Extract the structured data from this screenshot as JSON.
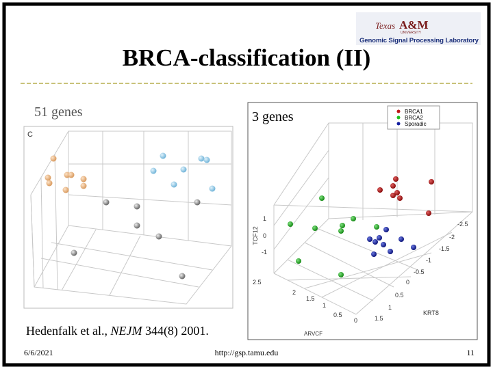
{
  "header": {
    "title": "BRCA-classification (II)",
    "logo": {
      "texas": "Texas",
      "am": "A&M",
      "university": "UNIVERSITY",
      "lab": "Genomic Signal Processing Laboratory"
    }
  },
  "left_panel": {
    "label": "51 genes",
    "figure_label": "C"
  },
  "right_panel": {
    "label": "3 genes",
    "legend": [
      "BRCA1",
      "BRCA2",
      "Sporadic"
    ],
    "z_axis": {
      "label": "TCF12",
      "ticks": [
        "1",
        "0",
        "-1"
      ]
    },
    "x_axis": {
      "label": "KRT8",
      "ticks": [
        "-2.5",
        "-2",
        "-1.5",
        "-1",
        "-0.5",
        "0",
        "0.5",
        "1",
        "1.5"
      ]
    },
    "y_axis": {
      "label": "ARVCF",
      "ticks": [
        "2.5",
        "2",
        "1.5",
        "1",
        "0.5",
        "0"
      ]
    }
  },
  "citation": {
    "authors": "Hedenfalk et al., ",
    "journal": "NEJM",
    "rest": " 344(8) 2001."
  },
  "footer": {
    "date": "6/6/2021",
    "url": "http://gsp.tamu.edu",
    "page": "11"
  }
}
